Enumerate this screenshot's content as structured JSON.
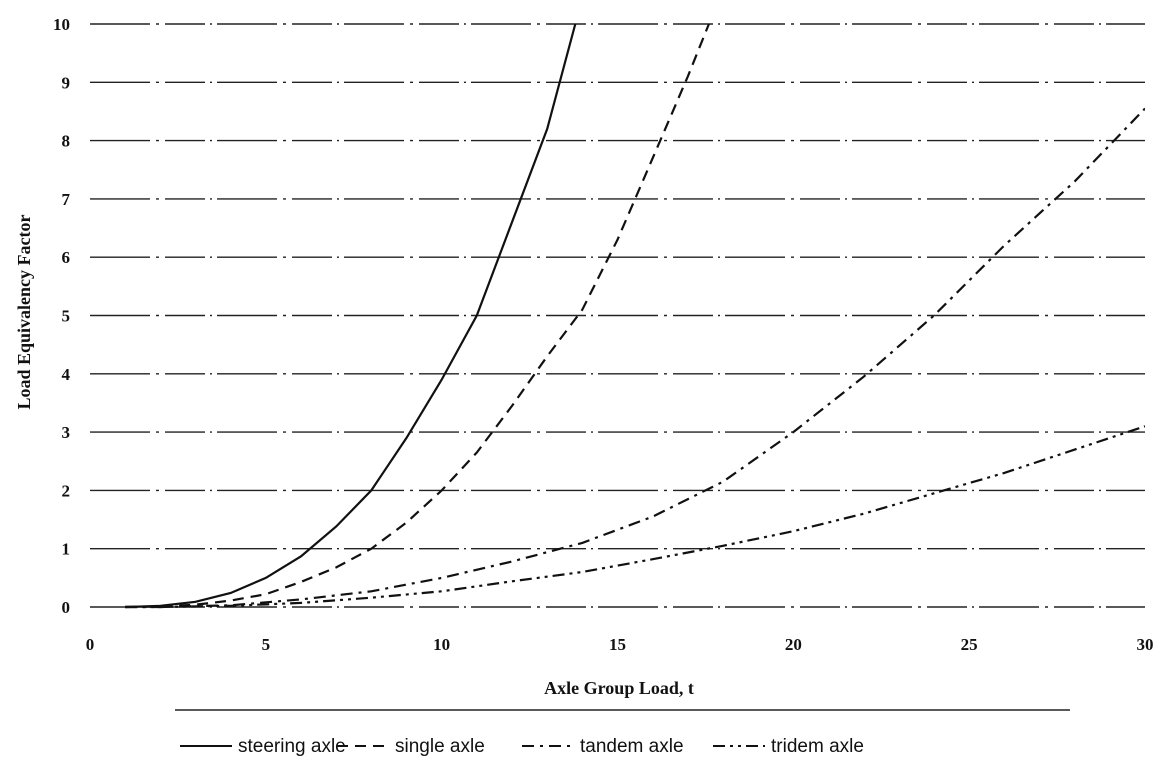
{
  "chart_data": {
    "type": "line",
    "title": "",
    "xlabel": "Axle Group Load, t",
    "ylabel": "Load Equivalency Factor",
    "xlim": [
      0,
      30
    ],
    "ylim": [
      0,
      10
    ],
    "x_ticks": [
      0,
      5,
      10,
      15,
      20,
      25,
      30
    ],
    "y_ticks": [
      0,
      1,
      2,
      3,
      4,
      5,
      6,
      7,
      8,
      9,
      10
    ],
    "grid": "horizontal",
    "legend_position": "bottom",
    "series": [
      {
        "name": "steering axle",
        "style": "solid",
        "x": [
          1,
          2,
          3,
          4,
          5,
          6,
          7,
          8,
          9,
          10,
          11,
          12,
          13,
          13.8
        ],
        "y": [
          0.0,
          0.02,
          0.09,
          0.24,
          0.5,
          0.87,
          1.38,
          2.0,
          2.9,
          3.9,
          5.0,
          6.6,
          8.2,
          10.0
        ]
      },
      {
        "name": "single axle",
        "style": "dashed",
        "x": [
          1,
          2,
          3,
          4,
          5,
          6,
          7,
          8,
          9,
          10,
          11,
          12,
          13,
          14,
          15,
          16,
          17,
          17.6
        ],
        "y": [
          0.0,
          0.01,
          0.04,
          0.11,
          0.22,
          0.43,
          0.68,
          1.0,
          1.45,
          2.0,
          2.65,
          3.45,
          4.3,
          5.1,
          6.3,
          7.7,
          9.1,
          10.0
        ]
      },
      {
        "name": "tandem axle",
        "style": "dash-dot",
        "x": [
          1,
          2,
          4,
          6,
          8,
          10,
          12,
          14,
          16,
          18,
          20,
          22,
          24,
          26,
          28,
          30
        ],
        "y": [
          0.0,
          0.0,
          0.03,
          0.13,
          0.27,
          0.5,
          0.78,
          1.1,
          1.55,
          2.15,
          3.0,
          3.95,
          5.0,
          6.2,
          7.3,
          8.55
        ]
      },
      {
        "name": "tridem axle",
        "style": "dash-dot-dot",
        "x": [
          1,
          2,
          4,
          6,
          8,
          10,
          12,
          14,
          16,
          18,
          20,
          22,
          24,
          26,
          28,
          30
        ],
        "y": [
          0.0,
          0.0,
          0.02,
          0.07,
          0.16,
          0.27,
          0.44,
          0.6,
          0.82,
          1.05,
          1.3,
          1.6,
          1.95,
          2.3,
          2.7,
          3.1
        ]
      }
    ]
  }
}
